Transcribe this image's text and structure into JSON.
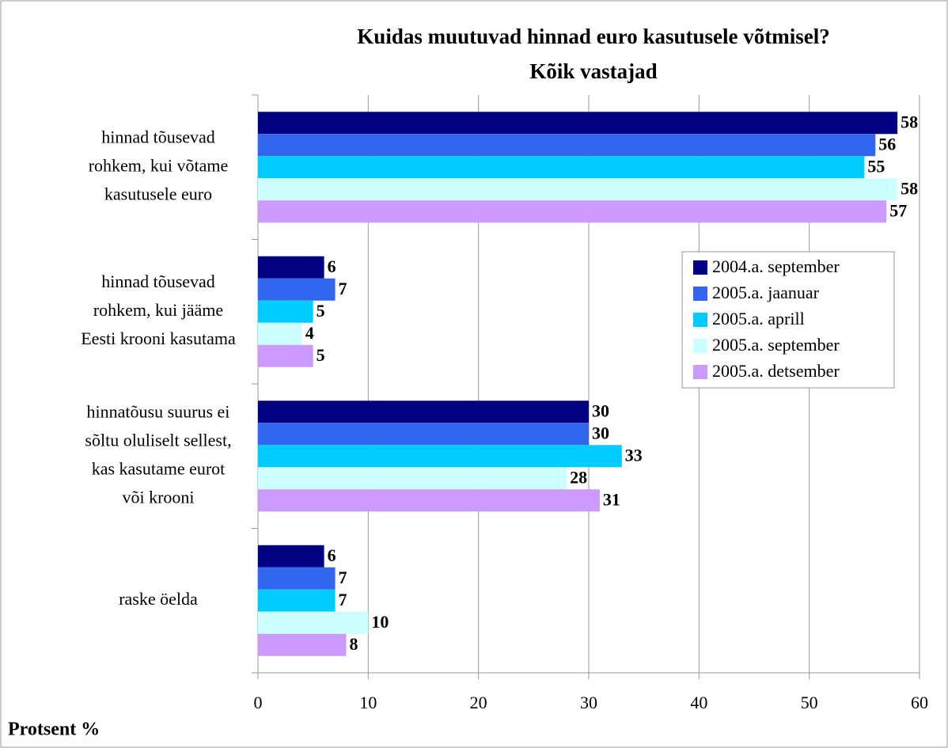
{
  "chart_data": {
    "type": "bar",
    "orientation": "horizontal",
    "title": "Kuidas muutuvad hinnad euro kasutusele võtmisel?",
    "subtitle": "Kõik vastajad",
    "x_label": "Protsent %",
    "categories": [
      [
        "hinnad tõusevad",
        "rohkem, kui võtame",
        "kasutusele euro"
      ],
      [
        "hinnad tõusevad",
        "rohkem, kui jääme",
        "Eesti krooni kasutama"
      ],
      [
        "hinnatõusu suurus ei",
        "sõltu oluliselt sellest,",
        "kas kasutame eurot",
        "või krooni"
      ],
      [
        "raske öelda"
      ]
    ],
    "series": [
      {
        "name": "2004.a. september",
        "color": "#000080",
        "values": [
          58,
          6,
          30,
          6
        ]
      },
      {
        "name": "2005.a. jaanuar",
        "color": "#3366ee",
        "values": [
          56,
          7,
          30,
          7
        ]
      },
      {
        "name": "2005.a. aprill",
        "color": "#00ccff",
        "values": [
          55,
          5,
          33,
          7
        ]
      },
      {
        "name": "2005.a. september",
        "color": "#ccffff",
        "values": [
          58,
          4,
          28,
          10
        ]
      },
      {
        "name": "2005.a. detsember",
        "color": "#cc99ff",
        "values": [
          57,
          5,
          31,
          8
        ]
      }
    ],
    "xlim": [
      0,
      60
    ],
    "xticks": [
      0,
      10,
      20,
      30,
      40,
      50,
      60
    ],
    "grid": true,
    "legend": "right"
  }
}
